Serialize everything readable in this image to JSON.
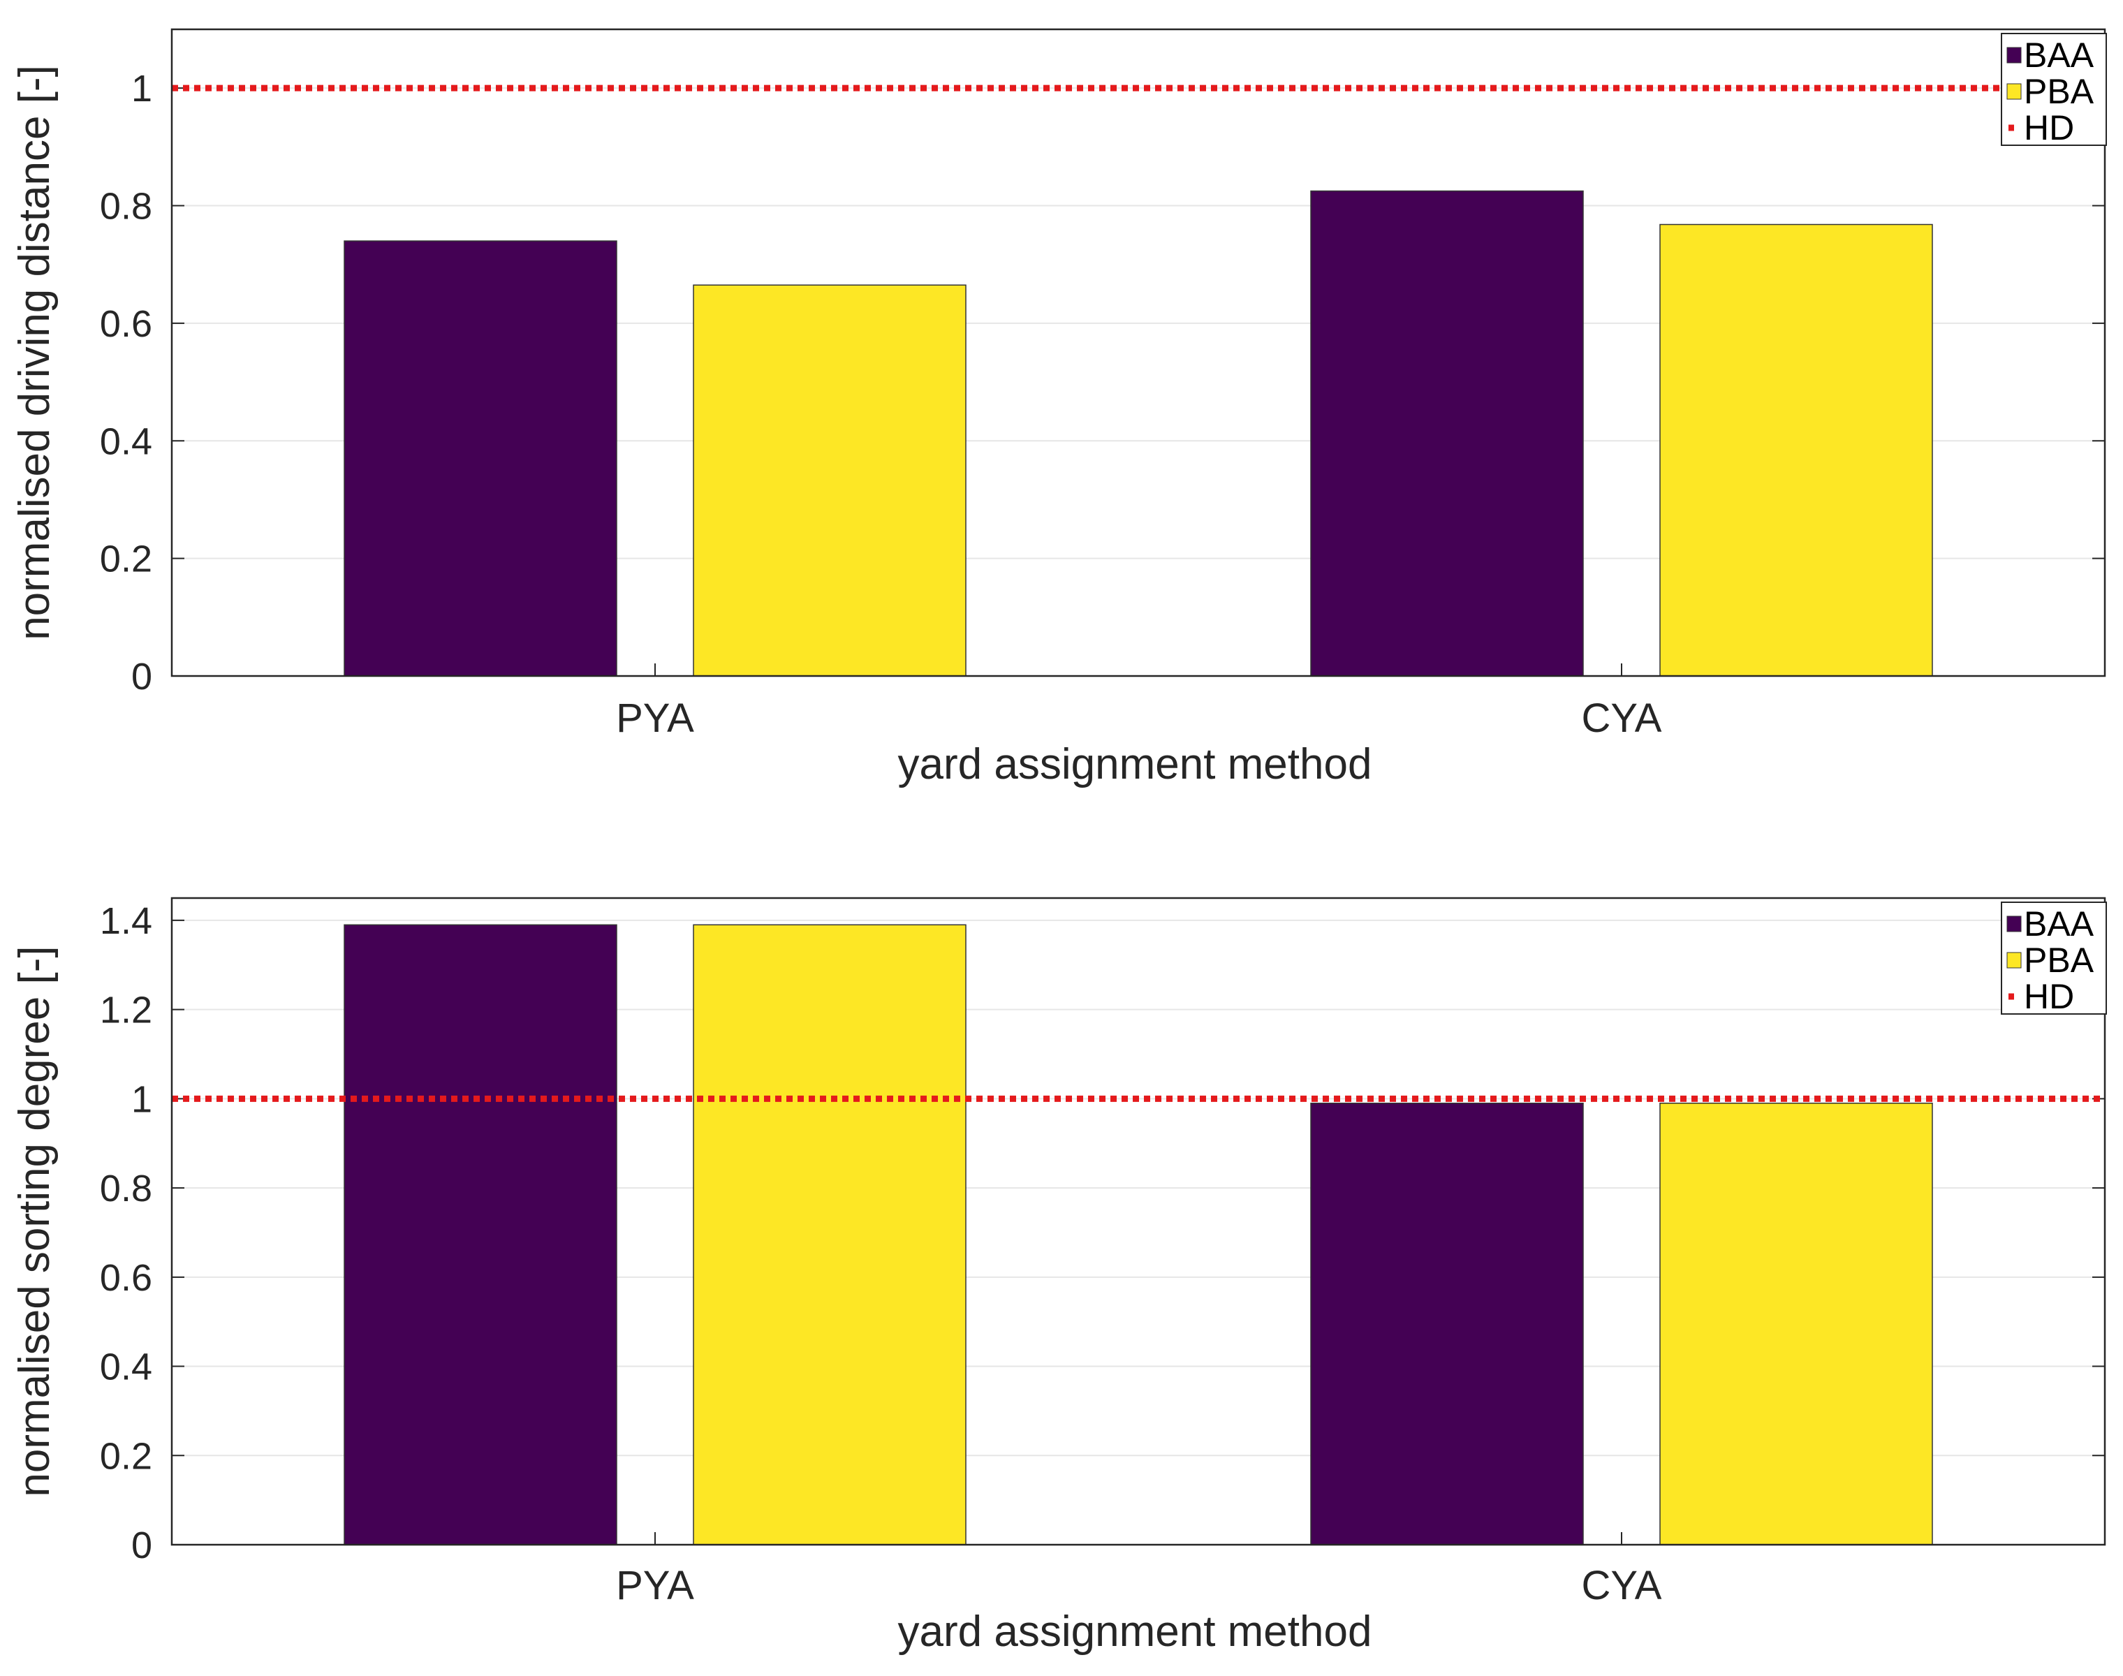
{
  "chart_data": [
    {
      "type": "bar",
      "title": "",
      "xlabel": "yard assignment method",
      "ylabel": "normalised driving distance [-]",
      "categories": [
        "PYA",
        "CYA"
      ],
      "series": [
        {
          "name": "BAA",
          "values": [
            0.74,
            0.825
          ],
          "color": "#440154"
        },
        {
          "name": "PBA",
          "values": [
            0.665,
            0.768
          ],
          "color": "#fde725"
        }
      ],
      "reference_lines": [
        {
          "name": "HD",
          "value": 1,
          "color": "#e41a1c",
          "style": "dotted"
        }
      ],
      "ylim": [
        0,
        1.1
      ],
      "yticks": [
        0,
        0.2,
        0.4,
        0.6,
        0.8,
        1
      ],
      "ytick_labels": [
        "0",
        "0.2",
        "0.4",
        "0.6",
        "0.8",
        "1"
      ],
      "grid": true,
      "legend": {
        "entries": [
          "BAA",
          "PBA",
          "HD"
        ],
        "location": "top-right"
      }
    },
    {
      "type": "bar",
      "title": "",
      "xlabel": "yard assignment method",
      "ylabel": "normalised sorting degree [-]",
      "categories": [
        "PYA",
        "CYA"
      ],
      "series": [
        {
          "name": "BAA",
          "values": [
            1.39,
            0.99
          ],
          "color": "#440154"
        },
        {
          "name": "PBA",
          "values": [
            1.39,
            0.99
          ],
          "color": "#fde725"
        }
      ],
      "reference_lines": [
        {
          "name": "HD",
          "value": 1,
          "color": "#e41a1c",
          "style": "dotted"
        }
      ],
      "ylim": [
        0,
        1.45
      ],
      "yticks": [
        0,
        0.2,
        0.4,
        0.6,
        0.8,
        1,
        1.2,
        1.4
      ],
      "ytick_labels": [
        "0",
        "0.2",
        "0.4",
        "0.6",
        "0.8",
        "1",
        "1.2",
        "1.4"
      ],
      "grid": true,
      "legend": {
        "entries": [
          "BAA",
          "PBA",
          "HD"
        ],
        "location": "top-right"
      }
    }
  ]
}
